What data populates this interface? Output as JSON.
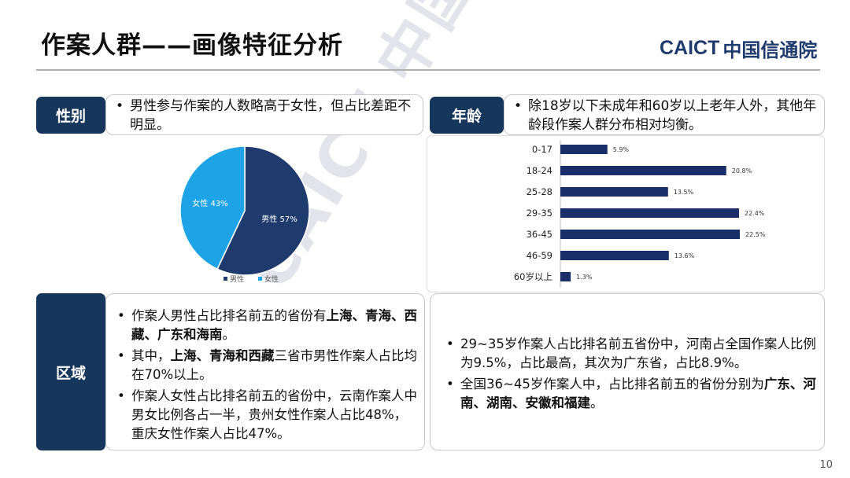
{
  "header": {
    "title": "作案人群——画像特征分析",
    "logo_en": "CAICT",
    "logo_cn": "中国信通院"
  },
  "gender": {
    "tag": "性别",
    "bullets": [
      "男性参与作案的人数略高于女性，但占比差距不明显。"
    ]
  },
  "age": {
    "tag": "年龄",
    "bullets": [
      "除18岁以下未成年和60岁以上老年人外，其他年龄段作案人群分布相对均衡。"
    ]
  },
  "region": {
    "tag": "区域",
    "left_bullets": [
      [
        {
          "t": "作案人男性占比排名前五的省份有"
        },
        {
          "t": "上海、青海、西藏、广东和海南",
          "b": true
        },
        {
          "t": "。"
        }
      ],
      [
        {
          "t": "其中，"
        },
        {
          "t": "上海、青海和西藏",
          "b": true
        },
        {
          "t": "三省市男性作案人占比均在70%以上。"
        }
      ],
      [
        {
          "t": "作案人女性占比排名前五的省份中，云南作案人中男女比例各占一半，贵州女性作案人占比48%，重庆女性作案人占比47%。"
        }
      ]
    ],
    "right_bullets": [
      [
        {
          "t": "29~35岁作案人占比排名前五省份中，河南占全国作案人比例为9.5%，占比最高，其次为广东省，占比8.9%。"
        }
      ],
      [
        {
          "t": "全国36~45岁作案人中，占比排名前五的省份分别为"
        },
        {
          "t": "广东、河南、湖南、安徽和福建",
          "b": true
        },
        {
          "t": "。"
        }
      ]
    ]
  },
  "watermark": "CAICT 中国信通院",
  "page_number": "10",
  "colors": {
    "navy": "#16365c",
    "male": "#1f3b6e",
    "female": "#1ea3e6",
    "bar": "#1a2f6a"
  },
  "chart_data": [
    {
      "type": "pie",
      "labels": [
        "男性",
        "女性"
      ],
      "values": [
        57,
        43
      ],
      "data_labels": [
        "男性 57%",
        "女性 43%"
      ],
      "legend": [
        "男性",
        "女性"
      ],
      "legend_position": "bottom",
      "colors": [
        "#1f3b6e",
        "#1ea3e6"
      ]
    },
    {
      "type": "bar",
      "orientation": "horizontal",
      "categories": [
        "0-17",
        "18-24",
        "25-28",
        "29-35",
        "36-45",
        "46-59",
        "60岁以上"
      ],
      "values": [
        5.9,
        20.8,
        13.5,
        22.4,
        22.5,
        13.6,
        1.3
      ],
      "data_labels": [
        "5.9%",
        "20.8%",
        "13.5%",
        "22.4%",
        "22.5%",
        "13.6%",
        "1.3%"
      ],
      "xlim": [
        0,
        22.5
      ]
    }
  ]
}
